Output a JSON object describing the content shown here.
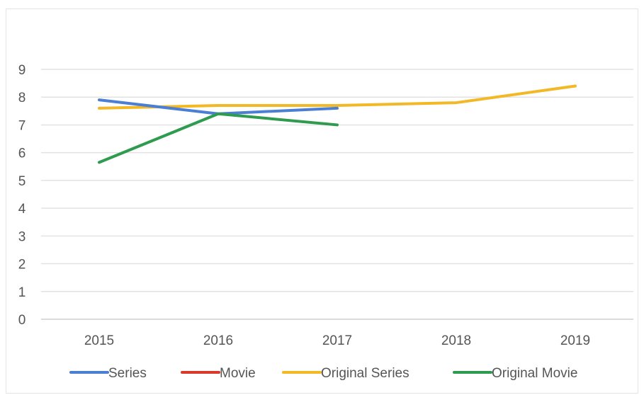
{
  "chart_data": {
    "type": "line",
    "title": "",
    "xlabel": "",
    "ylabel": "",
    "categories": [
      "2015",
      "2016",
      "2017",
      "2018",
      "2019"
    ],
    "ylim": [
      0,
      9
    ],
    "yticks": [
      "0",
      "1",
      "2",
      "3",
      "4",
      "5",
      "6",
      "7",
      "8",
      "9"
    ],
    "grid": true,
    "legend_position": "bottom",
    "series": [
      {
        "name": "Series",
        "color": "#4a7fd4",
        "values": [
          7.9,
          7.4,
          7.6,
          null,
          null
        ]
      },
      {
        "name": "Movie",
        "color": "#d93a2b",
        "values": [
          null,
          null,
          null,
          null,
          null
        ]
      },
      {
        "name": "Original Series",
        "color": "#f2b825",
        "values": [
          7.6,
          7.7,
          7.7,
          7.8,
          8.4
        ]
      },
      {
        "name": "Original Movie",
        "color": "#2e9b4e",
        "values": [
          5.65,
          7.4,
          7.0,
          null,
          null
        ]
      }
    ]
  }
}
